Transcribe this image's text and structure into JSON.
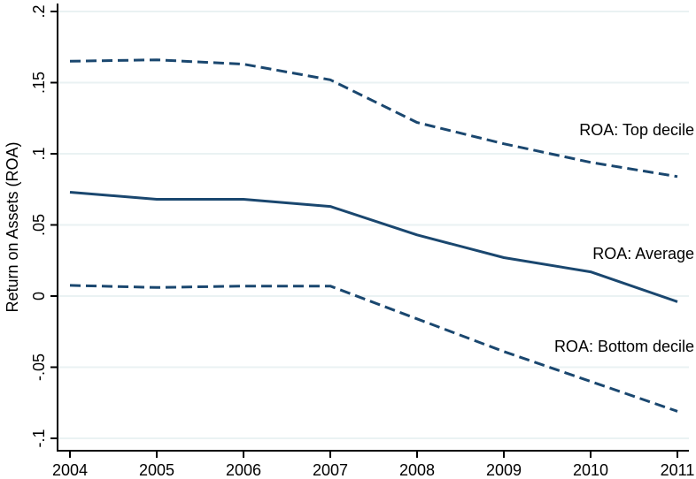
{
  "chart_data": {
    "type": "line",
    "title": "",
    "xlabel": "",
    "ylabel": "Return on Assets (ROA)",
    "x": [
      2004,
      2005,
      2006,
      2007,
      2008,
      2009,
      2010,
      2011
    ],
    "x_tick_labels": [
      "2004",
      "2005",
      "2006",
      "2007",
      "2008",
      "2009",
      "2010",
      "2011"
    ],
    "y_ticks": [
      -0.1,
      -0.05,
      0,
      0.05,
      0.1,
      0.15,
      0.2
    ],
    "y_tick_labels": [
      "-.1",
      "-.05",
      "0",
      ".05",
      ".1",
      ".15",
      ".2"
    ],
    "ylim": [
      -0.1,
      0.2
    ],
    "grid": true,
    "legend_position": "inline labels at right end of lines",
    "series": [
      {
        "name": "ROA: Top decile",
        "style": "dashed",
        "color": "#1a476f",
        "values": [
          0.165,
          0.166,
          0.163,
          0.152,
          0.122,
          0.107,
          0.094,
          0.084
        ]
      },
      {
        "name": "ROA: Average",
        "style": "solid",
        "color": "#1a476f",
        "values": [
          0.073,
          0.068,
          0.068,
          0.063,
          0.043,
          0.027,
          0.017,
          -0.004
        ]
      },
      {
        "name": "ROA: Bottom decile",
        "style": "dashed",
        "color": "#1a476f",
        "values": [
          0.0075,
          0.006,
          0.007,
          0.007,
          -0.016,
          -0.039,
          -0.06,
          -0.081
        ]
      }
    ],
    "annotations": [
      {
        "text": "ROA: Top decile",
        "series": 0
      },
      {
        "text": "ROA: Average",
        "series": 1
      },
      {
        "text": "ROA: Bottom decile",
        "series": 2
      }
    ]
  },
  "style": {
    "line_color": "#1a476f",
    "grid_color": "#eaf2f3",
    "axis_color": "#000000"
  }
}
